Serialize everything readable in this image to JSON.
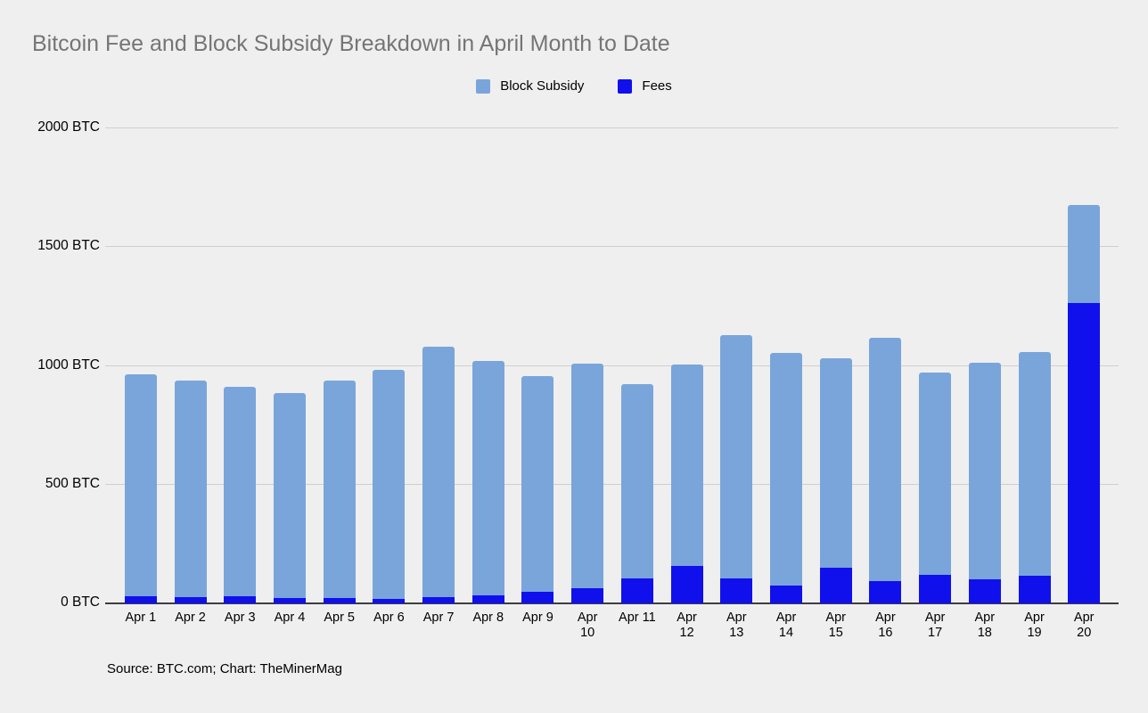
{
  "title": "Bitcoin Fee and Block Subsidy Breakdown in April Month to Date",
  "source": "Source: BTC.com; Chart: TheMinerMag",
  "colors": {
    "background": "#efefef",
    "title_text": "#757575",
    "block_subsidy": "#7aa5da",
    "fees": "#1010ec",
    "gridline": "#cfcfcf",
    "axis": "#3d3d3d"
  },
  "chart_data": {
    "type": "bar",
    "stacked": true,
    "title": "Bitcoin Fee and Block Subsidy Breakdown in April Month to Date",
    "categories": [
      "Apr 1",
      "Apr 2",
      "Apr 3",
      "Apr 4",
      "Apr 5",
      "Apr 6",
      "Apr 7",
      "Apr 8",
      "Apr 9",
      "Apr 10",
      "Apr 11",
      "Apr 12",
      "Apr 13",
      "Apr 14",
      "Apr 15",
      "Apr 16",
      "Apr 17",
      "Apr 18",
      "Apr 19",
      "Apr 20"
    ],
    "tick_labels": [
      "Apr 1",
      "Apr 2",
      "Apr 3",
      "Apr 4",
      "Apr 5",
      "Apr 6",
      "Apr 7",
      "Apr 8",
      "Apr 9",
      "Apr\n10",
      "Apr 11",
      "Apr\n12",
      "Apr\n13",
      "Apr\n14",
      "Apr\n15",
      "Apr\n16",
      "Apr\n17",
      "Apr\n18",
      "Apr\n19",
      "Apr\n20"
    ],
    "series": [
      {
        "name": "Block Subsidy",
        "color": "#7aa5da",
        "values": [
          934,
          914,
          884,
          860,
          916,
          965,
          1055,
          985,
          908,
          946,
          820,
          848,
          1023,
          979,
          881,
          1026,
          853,
          909,
          945,
          414
        ]
      },
      {
        "name": "Fees",
        "color": "#1010ec",
        "values": [
          30,
          26,
          29,
          24,
          24,
          20,
          25,
          35,
          50,
          65,
          105,
          158,
          105,
          75,
          150,
          93,
          120,
          103,
          115,
          1263
        ]
      }
    ],
    "totals": [
      964,
      940,
      913,
      884,
      940,
      985,
      1080,
      1020,
      958,
      1011,
      925,
      1006,
      1128,
      1054,
      1031,
      1119,
      973,
      1012,
      1060,
      1677
    ],
    "yticks": [
      {
        "label": "2000 BTC",
        "value": 2000
      },
      {
        "label": "1500 BTC",
        "value": 1500
      },
      {
        "label": "1000 BTC",
        "value": 1000
      },
      {
        "label": "500 BTC",
        "value": 500
      },
      {
        "label": "0 BTC",
        "value": 0
      }
    ],
    "ylim": [
      0,
      2000
    ],
    "unit": "BTC",
    "legend_position": "top",
    "grid": true,
    "source": "Source: BTC.com; Chart: TheMinerMag"
  }
}
